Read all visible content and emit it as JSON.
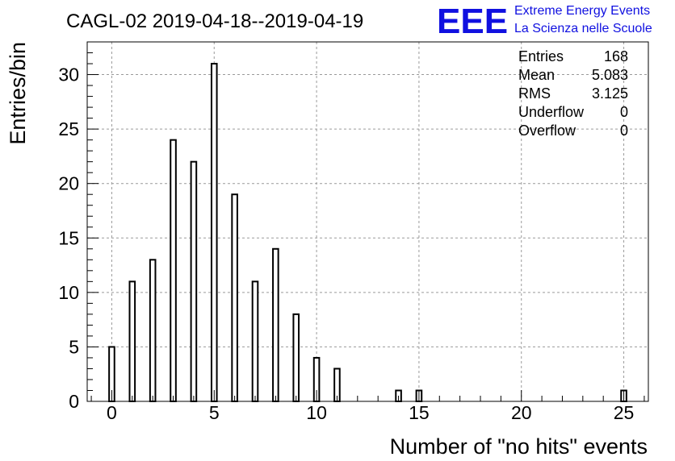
{
  "chart_data": {
    "type": "bar",
    "title": "CAGL-02 2019-04-18--2019-04-19",
    "xlabel": "Number of \"no hits\" events",
    "ylabel": "Entries/bin",
    "xlim": [
      -1.2,
      26.2
    ],
    "ylim": [
      0,
      33
    ],
    "grid": true,
    "x_ticks": [
      0,
      5,
      10,
      15,
      20,
      25
    ],
    "y_ticks": [
      0,
      5,
      10,
      15,
      20,
      25,
      30
    ],
    "x": [
      0,
      1,
      2,
      3,
      4,
      5,
      6,
      7,
      8,
      9,
      10,
      11,
      14,
      15,
      25
    ],
    "values": [
      5,
      11,
      13,
      24,
      22,
      31,
      19,
      11,
      14,
      8,
      4,
      3,
      1,
      1,
      1
    ],
    "bar_color": "#000000",
    "stats": [
      {
        "label": "Entries",
        "value": "168"
      },
      {
        "label": "Mean",
        "value": "5.083"
      },
      {
        "label": "RMS",
        "value": "3.125"
      },
      {
        "label": "Underflow",
        "value": "0"
      },
      {
        "label": "Overflow",
        "value": "0"
      }
    ]
  },
  "logo": {
    "text": "EEE",
    "line1": "Extreme Energy Events",
    "line2": "La Scienza nelle Scuole",
    "color": "#1010e0"
  }
}
